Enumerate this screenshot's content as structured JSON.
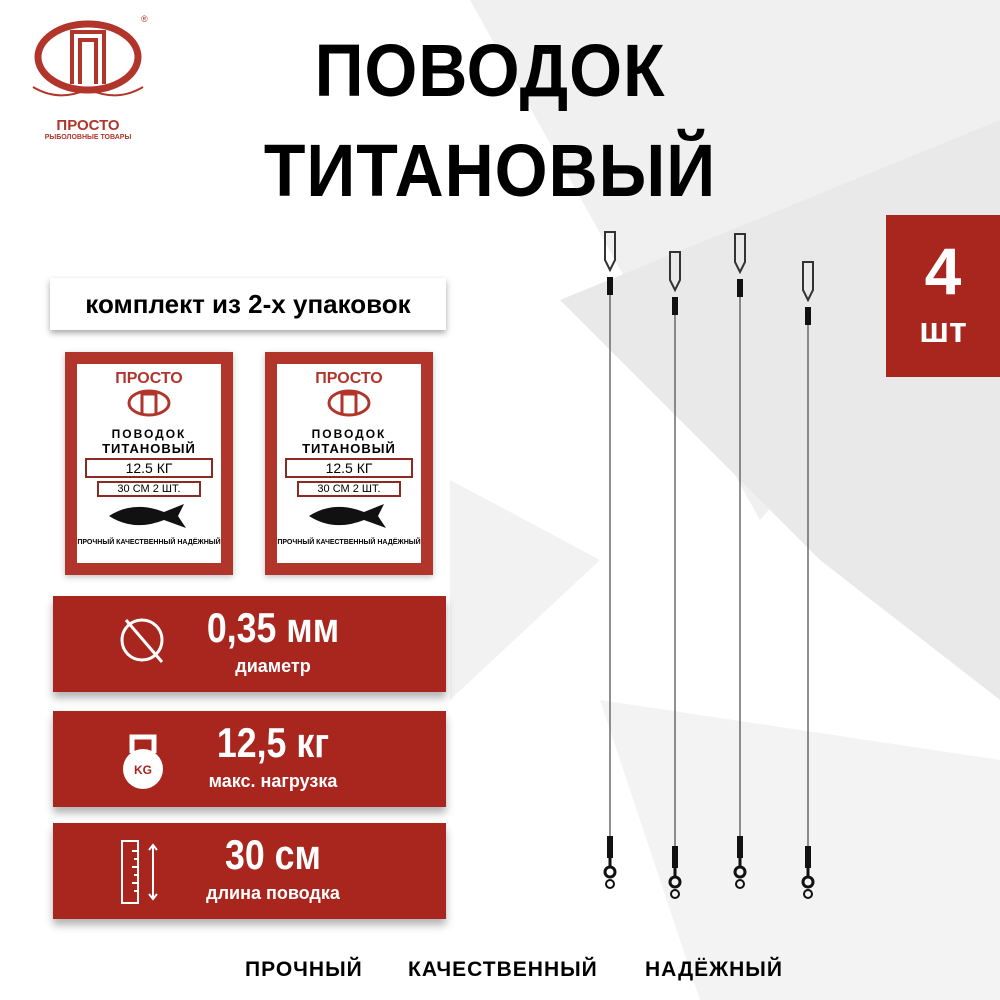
{
  "brand": {
    "logo_text": "ПРОСТО",
    "logo_subtext": "РЫБОЛОВНЫЕ ТОВАРЫ",
    "registered": "®"
  },
  "title": {
    "line1": "ПОВОДОК",
    "line2": "ТИТАНОВЫЙ"
  },
  "count": {
    "value": "4",
    "unit": "шт"
  },
  "kit_label": "комплект из 2-х упаковок",
  "package": {
    "brand": "ПРОСТО",
    "line1": "ПОВОДОК",
    "line2": "ТИТАНОВЫЙ",
    "load": "12.5 КГ",
    "size": "30 СМ   2 ШТ.",
    "footer": "ПРОЧНЫЙ КАЧЕСТВЕННЫЙ НАДЁЖНЫЙ"
  },
  "specs": [
    {
      "icon": "diameter-icon",
      "value": "0,35 мм",
      "label": "диаметр"
    },
    {
      "icon": "kettlebell-icon",
      "value": "12,5 кг",
      "label": "макс. нагрузка",
      "icon_text": "KG"
    },
    {
      "icon": "ruler-icon",
      "value": "30 см",
      "label": "длина поводка"
    }
  ],
  "qualities": [
    "ПРОЧНЫЙ",
    "КАЧЕСТВЕННЫЙ",
    "НАДЁЖНЫЙ"
  ],
  "colors": {
    "accent": "#a8261e",
    "background_shapes": "#ececec"
  }
}
